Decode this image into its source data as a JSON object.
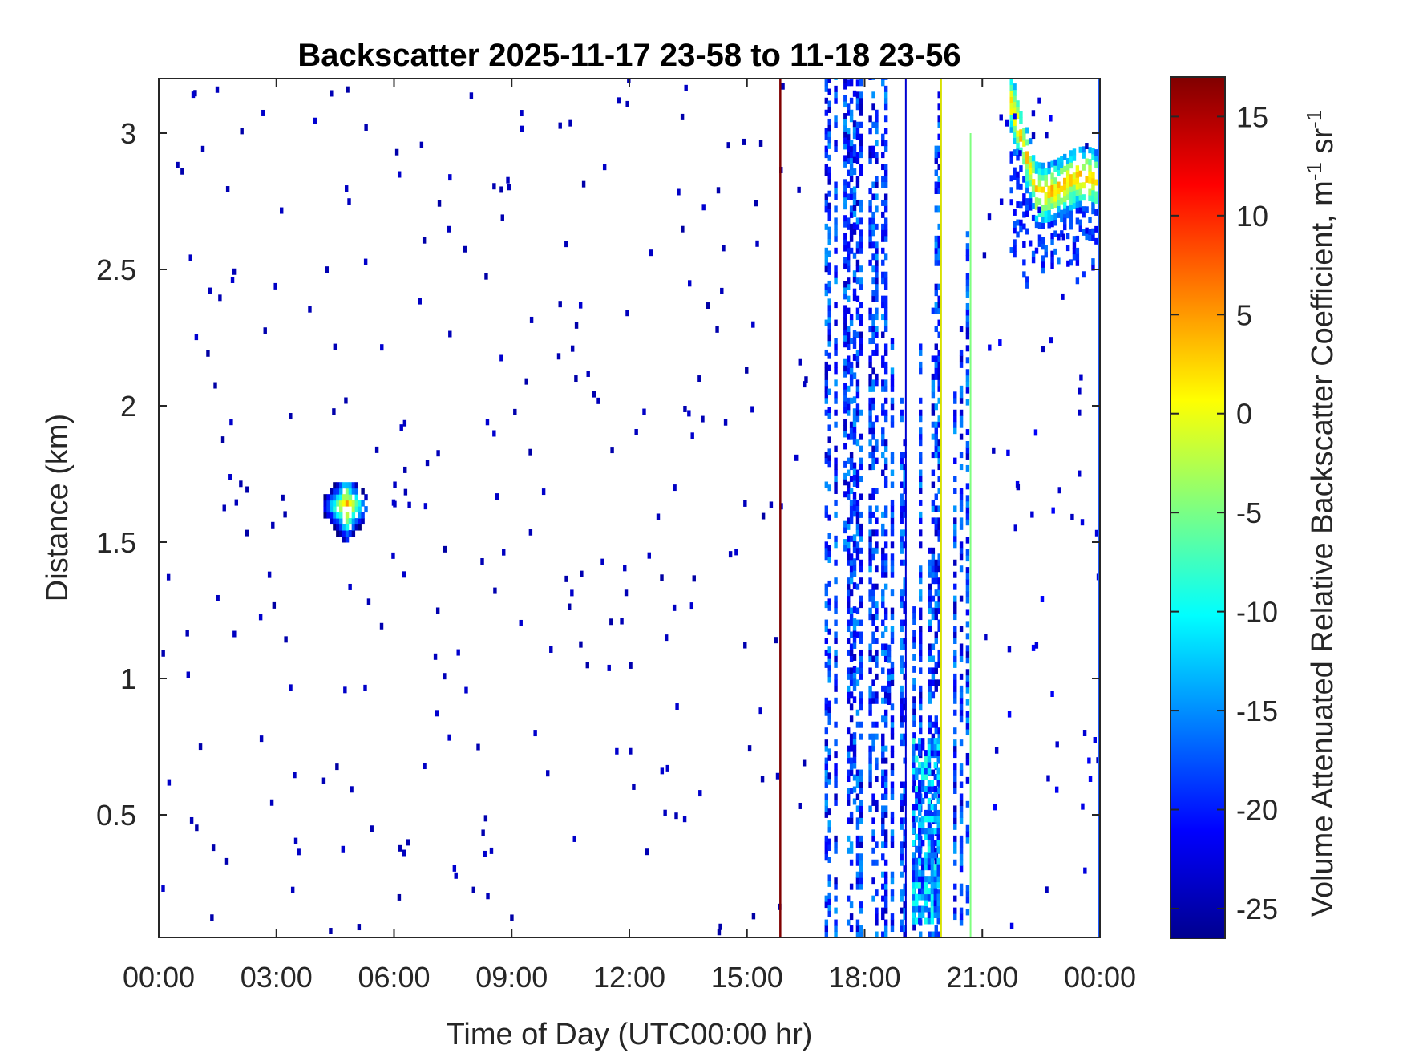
{
  "chart_data": {
    "type": "heatmap",
    "title": "Backscatter 2025-11-17 23-58 to 11-18 23-56",
    "xlabel": "Time of Day (UTC00:00 hr)",
    "ylabel": "Distance (km)",
    "colorbar_label": "Volume Attenuated Relative Backscatter Coefficient, m-1 sr-1",
    "colorbar_label_parts": {
      "prefix": "Volume Attenuated Relative Backscatter Coefficient, m",
      "sup1": "-1",
      "mid": " sr",
      "sup2": "-1"
    },
    "x_range_hours": [
      0,
      24
    ],
    "y_range_km": [
      0.05,
      3.2
    ],
    "color_range": [
      -26.5,
      17
    ],
    "colormap": "jet",
    "x_ticks": [
      {
        "value": 0,
        "label": "00:00"
      },
      {
        "value": 3,
        "label": "03:00"
      },
      {
        "value": 6,
        "label": "06:00"
      },
      {
        "value": 9,
        "label": "09:00"
      },
      {
        "value": 12,
        "label": "12:00"
      },
      {
        "value": 15,
        "label": "15:00"
      },
      {
        "value": 18,
        "label": "18:00"
      },
      {
        "value": 21,
        "label": "21:00"
      },
      {
        "value": 24,
        "label": "00:00"
      }
    ],
    "y_ticks": [
      {
        "value": 0.5,
        "label": "0.5"
      },
      {
        "value": 1,
        "label": "1"
      },
      {
        "value": 1.5,
        "label": "1.5"
      },
      {
        "value": 2,
        "label": "2"
      },
      {
        "value": 2.5,
        "label": "2.5"
      },
      {
        "value": 3,
        "label": "3"
      }
    ],
    "colorbar_ticks": [
      {
        "value": 15,
        "label": "15"
      },
      {
        "value": 10,
        "label": "10"
      },
      {
        "value": 5,
        "label": "5"
      },
      {
        "value": 0,
        "label": "0"
      },
      {
        "value": -5,
        "label": "-5"
      },
      {
        "value": -10,
        "label": "-10"
      },
      {
        "value": -15,
        "label": "-15"
      },
      {
        "value": -20,
        "label": "-20"
      },
      {
        "value": -25,
        "label": "-25"
      }
    ],
    "features": [
      {
        "name": "cloud-patch-early",
        "t_start": 4.2,
        "t_end": 5.3,
        "z_low": 1.5,
        "z_high": 1.72,
        "value_peak": 5
      },
      {
        "name": "instrument-spike-line",
        "time": 15.85,
        "z_low": 0.05,
        "z_high": 3.2,
        "value": 17
      },
      {
        "name": "precip-columns",
        "t_start": 16.9,
        "t_end": 20.8,
        "z_low": 0.05,
        "z_high": 3.2,
        "value_typical": -20
      },
      {
        "name": "low-cloud-patch",
        "t_start": 19.2,
        "t_end": 19.9,
        "z_low": 0.1,
        "z_high": 0.78,
        "value_peak": -8
      },
      {
        "name": "cloud-layer-high",
        "t_start": 21.7,
        "t_end": 24,
        "z_low": 2.6,
        "z_high": 3.2,
        "value_peak": 7
      }
    ]
  }
}
